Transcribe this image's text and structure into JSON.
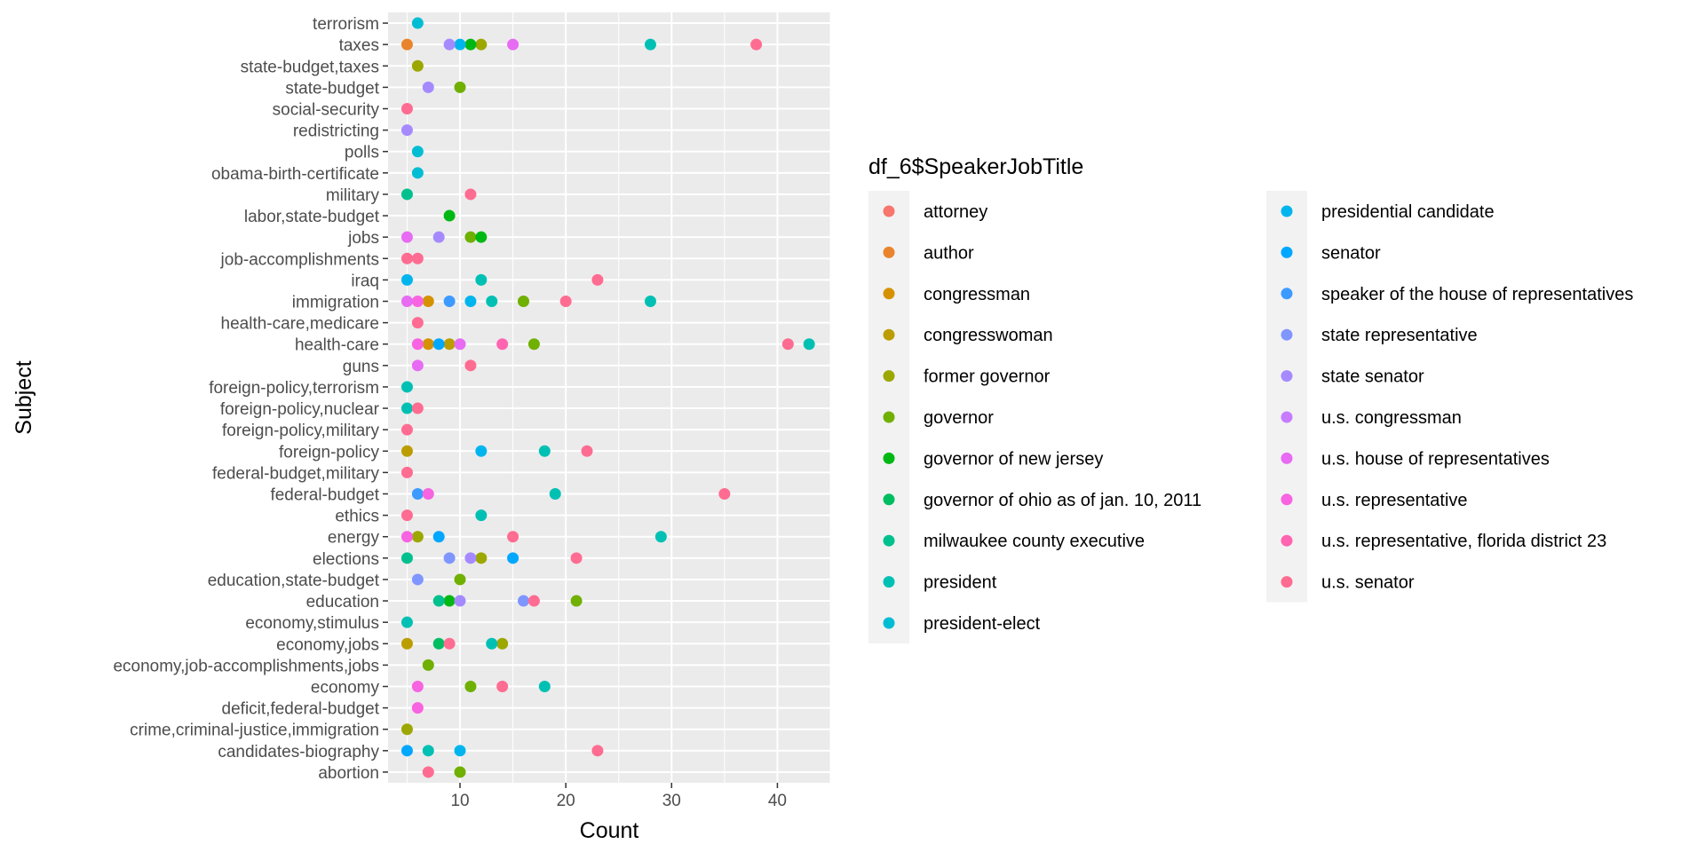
{
  "chart_data": {
    "type": "scatter",
    "xlabel": "Count",
    "ylabel": "Subject",
    "xlim": [
      3.2,
      45.0
    ],
    "x_ticks": [
      10,
      20,
      30,
      40
    ],
    "grid": true,
    "legend_placement": "right",
    "legend_title": "df_6$SpeakerJobTitle",
    "categories": [
      "abortion",
      "candidates-biography",
      "crime,criminal-justice,immigration",
      "deficit,federal-budget",
      "economy",
      "economy,job-accomplishments,jobs",
      "economy,jobs",
      "economy,stimulus",
      "education",
      "education,state-budget",
      "elections",
      "energy",
      "ethics",
      "federal-budget",
      "federal-budget,military",
      "foreign-policy",
      "foreign-policy,military",
      "foreign-policy,nuclear",
      "foreign-policy,terrorism",
      "guns",
      "health-care",
      "health-care,medicare",
      "immigration",
      "iraq",
      "job-accomplishments",
      "jobs",
      "labor,state-budget",
      "military",
      "obama-birth-certificate",
      "polls",
      "redistricting",
      "social-security",
      "state-budget",
      "state-budget,taxes",
      "taxes",
      "terrorism"
    ],
    "series": [
      {
        "name": "attorney",
        "color": "#F8766D",
        "points": []
      },
      {
        "name": "author",
        "color": "#E9842C",
        "points": [
          {
            "subject": "taxes",
            "x": 5
          }
        ]
      },
      {
        "name": "congressman",
        "color": "#D69100",
        "points": [
          {
            "subject": "immigration",
            "x": 7
          },
          {
            "subject": "health-care",
            "x": 7
          }
        ]
      },
      {
        "name": "congresswoman",
        "color": "#BC9D00",
        "points": [
          {
            "subject": "health-care",
            "x": 9
          },
          {
            "subject": "economy,jobs",
            "x": 5
          },
          {
            "subject": "foreign-policy",
            "x": 5
          }
        ]
      },
      {
        "name": "former governor",
        "color": "#9CA700",
        "points": [
          {
            "subject": "energy",
            "x": 6
          },
          {
            "subject": "elections",
            "x": 12
          },
          {
            "subject": "state-budget,taxes",
            "x": 6
          },
          {
            "subject": "taxes",
            "x": 12
          },
          {
            "subject": "economy,jobs",
            "x": 14
          },
          {
            "subject": "crime,criminal-justice,immigration",
            "x": 5
          }
        ]
      },
      {
        "name": "governor",
        "color": "#6FB000",
        "points": [
          {
            "subject": "abortion",
            "x": 10
          },
          {
            "subject": "economy",
            "x": 11
          },
          {
            "subject": "economy,job-accomplishments,jobs",
            "x": 7
          },
          {
            "subject": "education",
            "x": 21
          },
          {
            "subject": "education,state-budget",
            "x": 10
          },
          {
            "subject": "health-care",
            "x": 17
          },
          {
            "subject": "immigration",
            "x": 16
          },
          {
            "subject": "jobs",
            "x": 11
          },
          {
            "subject": "state-budget",
            "x": 10
          }
        ]
      },
      {
        "name": "governor of new jersey",
        "color": "#00B813",
        "points": [
          {
            "subject": "taxes",
            "x": 11
          },
          {
            "subject": "jobs",
            "x": 12
          },
          {
            "subject": "education",
            "x": 9
          },
          {
            "subject": "labor,state-budget",
            "x": 9
          }
        ]
      },
      {
        "name": "governor of ohio as of jan. 10, 2011",
        "color": "#00BD61",
        "points": [
          {
            "subject": "economy,jobs",
            "x": 8
          }
        ]
      },
      {
        "name": "milwaukee county executive",
        "color": "#00C08E",
        "points": [
          {
            "subject": "elections",
            "x": 5
          },
          {
            "subject": "military",
            "x": 5
          },
          {
            "subject": "education",
            "x": 8
          }
        ]
      },
      {
        "name": "president",
        "color": "#00C0B4",
        "points": [
          {
            "subject": "health-care",
            "x": 43
          },
          {
            "subject": "taxes",
            "x": 28
          },
          {
            "subject": "immigration",
            "x": 28
          },
          {
            "subject": "energy",
            "x": 29
          },
          {
            "subject": "federal-budget",
            "x": 19
          },
          {
            "subject": "foreign-policy",
            "x": 18
          },
          {
            "subject": "economy",
            "x": 18
          },
          {
            "subject": "ethics",
            "x": 12
          },
          {
            "subject": "iraq",
            "x": 12
          },
          {
            "subject": "economy,jobs",
            "x": 13
          },
          {
            "subject": "immigration",
            "x": 13
          },
          {
            "subject": "candidates-biography",
            "x": 7
          },
          {
            "subject": "economy,stimulus",
            "x": 5
          },
          {
            "subject": "foreign-policy,terrorism",
            "x": 5
          },
          {
            "subject": "foreign-policy,nuclear",
            "x": 5
          }
        ]
      },
      {
        "name": "president-elect",
        "color": "#00BDD4",
        "points": [
          {
            "subject": "terrorism",
            "x": 6
          },
          {
            "subject": "polls",
            "x": 6
          },
          {
            "subject": "obama-birth-certificate",
            "x": 6
          }
        ]
      },
      {
        "name": "presidential candidate",
        "color": "#00B5EE",
        "points": [
          {
            "subject": "taxes",
            "x": 10
          },
          {
            "subject": "candidates-biography",
            "x": 10
          },
          {
            "subject": "immigration",
            "x": 11
          },
          {
            "subject": "iraq",
            "x": 5
          },
          {
            "subject": "foreign-policy",
            "x": 12
          }
        ]
      },
      {
        "name": "senator",
        "color": "#00A7FF",
        "points": [
          {
            "subject": "energy",
            "x": 8
          },
          {
            "subject": "health-care",
            "x": 8
          },
          {
            "subject": "elections",
            "x": 15
          },
          {
            "subject": "candidates-biography",
            "x": 5
          }
        ]
      },
      {
        "name": "speaker of the house of representatives",
        "color": "#3D9BFF",
        "points": [
          {
            "subject": "federal-budget",
            "x": 6
          },
          {
            "subject": "immigration",
            "x": 9
          }
        ]
      },
      {
        "name": "state representative",
        "color": "#7F96FF",
        "points": [
          {
            "subject": "education,state-budget",
            "x": 6
          },
          {
            "subject": "education",
            "x": 16
          },
          {
            "subject": "elections",
            "x": 9
          }
        ]
      },
      {
        "name": "state senator",
        "color": "#A58AFF",
        "points": [
          {
            "subject": "taxes",
            "x": 9
          },
          {
            "subject": "state-budget",
            "x": 7
          },
          {
            "subject": "redistricting",
            "x": 5
          },
          {
            "subject": "jobs",
            "x": 8
          },
          {
            "subject": "education",
            "x": 10
          },
          {
            "subject": "elections",
            "x": 11
          }
        ]
      },
      {
        "name": "u.s. congressman",
        "color": "#C77CFF",
        "points": []
      },
      {
        "name": "u.s. house of representatives",
        "color": "#E76BF3",
        "points": [
          {
            "subject": "taxes",
            "x": 15
          },
          {
            "subject": "jobs",
            "x": 5
          },
          {
            "subject": "immigration",
            "x": 5
          },
          {
            "subject": "health-care",
            "x": 10
          },
          {
            "subject": "guns",
            "x": 6
          }
        ]
      },
      {
        "name": "u.s. representative",
        "color": "#F763E0",
        "points": [
          {
            "subject": "immigration",
            "x": 6
          },
          {
            "subject": "health-care",
            "x": 6
          },
          {
            "subject": "federal-budget",
            "x": 7
          },
          {
            "subject": "energy",
            "x": 5
          },
          {
            "subject": "economy",
            "x": 6
          },
          {
            "subject": "deficit,federal-budget",
            "x": 6
          }
        ]
      },
      {
        "name": "u.s. representative, florida district 23",
        "color": "#FF64B0",
        "points": [
          {
            "subject": "health-care",
            "x": 14
          }
        ]
      },
      {
        "name": "u.s. senator",
        "color": "#FF6C91",
        "points": [
          {
            "subject": "taxes",
            "x": 38
          },
          {
            "subject": "social-security",
            "x": 5
          },
          {
            "subject": "military",
            "x": 11
          },
          {
            "subject": "job-accomplishments",
            "x": 5
          },
          {
            "subject": "job-accomplishments",
            "x": 6
          },
          {
            "subject": "iraq",
            "x": 23
          },
          {
            "subject": "immigration",
            "x": 20
          },
          {
            "subject": "health-care,medicare",
            "x": 6
          },
          {
            "subject": "health-care",
            "x": 41
          },
          {
            "subject": "guns",
            "x": 11
          },
          {
            "subject": "foreign-policy,nuclear",
            "x": 6
          },
          {
            "subject": "foreign-policy,military",
            "x": 5
          },
          {
            "subject": "foreign-policy",
            "x": 22
          },
          {
            "subject": "federal-budget,military",
            "x": 5
          },
          {
            "subject": "federal-budget",
            "x": 35
          },
          {
            "subject": "ethics",
            "x": 5
          },
          {
            "subject": "energy",
            "x": 15
          },
          {
            "subject": "elections",
            "x": 21
          },
          {
            "subject": "education",
            "x": 17
          },
          {
            "subject": "economy,jobs",
            "x": 9
          },
          {
            "subject": "economy",
            "x": 14
          },
          {
            "subject": "candidates-biography",
            "x": 23
          },
          {
            "subject": "abortion",
            "x": 7
          }
        ]
      }
    ]
  }
}
